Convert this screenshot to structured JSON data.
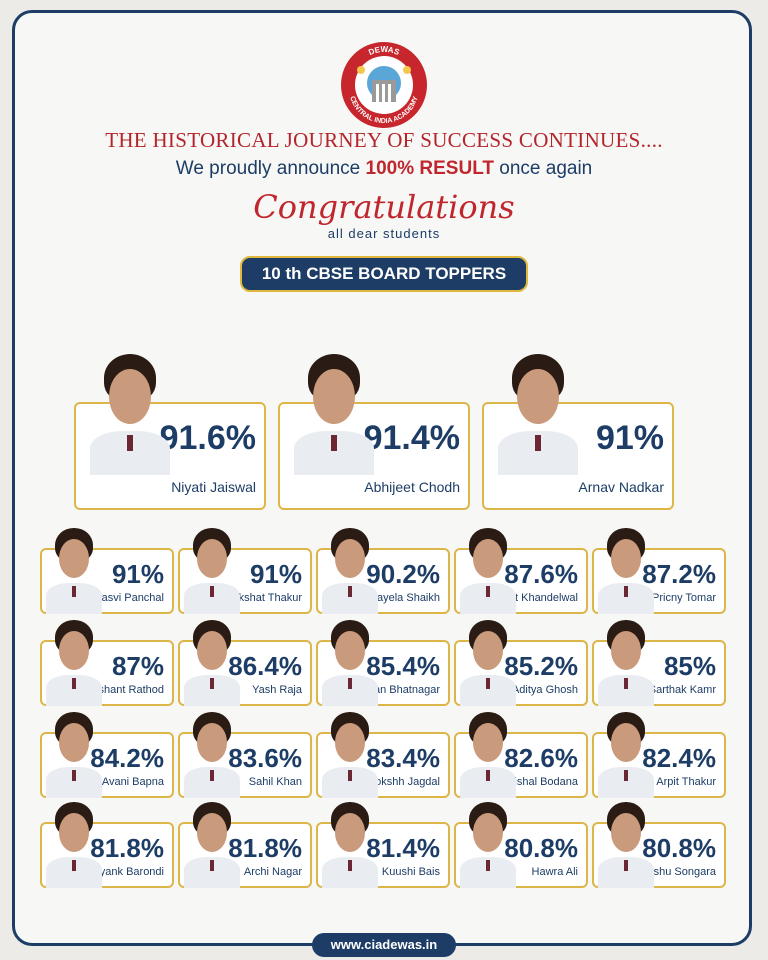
{
  "logo": {
    "top_text": "DEWAS",
    "ring_text": "CENTRAL INDIA ACADEMY"
  },
  "header": {
    "line1": "THE HISTORICAL JOURNEY OF SUCCESS CONTINUES....",
    "line2_pre": "We proudly announce ",
    "line2_bold": "100% RESULT",
    "line2_post": " once again",
    "congrats": "Congratulations",
    "sub": "all dear students",
    "banner": "10 th CBSE BOARD TOPPERS"
  },
  "top_three": [
    {
      "percent": "91.6%",
      "name": "Niyati Jaiswal"
    },
    {
      "percent": "91.4%",
      "name": "Abhijeet Chodh"
    },
    {
      "percent": "91%",
      "name": "Arnav Nadkar"
    }
  ],
  "rows": [
    [
      {
        "percent": "91%",
        "name": "Satasvi Panchal"
      },
      {
        "percent": "91%",
        "name": "Akshat  Thakur"
      },
      {
        "percent": "90.2%",
        "name": "Nayela Shaikh"
      },
      {
        "percent": "87.6%",
        "name": "Archit Khandelwal"
      },
      {
        "percent": "87.2%",
        "name": "Pricny Tomar"
      }
    ],
    [
      {
        "percent": "87%",
        "name": "Prashant Rathod"
      },
      {
        "percent": "86.4%",
        "name": "Yash Raja"
      },
      {
        "percent": "85.4%",
        "name": "Mohan Bhatnagar"
      },
      {
        "percent": "85.2%",
        "name": "Aditya Ghosh"
      },
      {
        "percent": "85%",
        "name": "Sarthak Kamr"
      }
    ],
    [
      {
        "percent": "84.2%",
        "name": "Avani Bapna"
      },
      {
        "percent": "83.6%",
        "name": "Sahil Khan"
      },
      {
        "percent": "83.4%",
        "name": "Mokshh Jagdal"
      },
      {
        "percent": "82.6%",
        "name": "Vishal Bodana"
      },
      {
        "percent": "82.4%",
        "name": "Arpit Thakur"
      }
    ],
    [
      {
        "percent": "81.8%",
        "name": "Mayank Barondi"
      },
      {
        "percent": "81.8%",
        "name": "Archi Nagar"
      },
      {
        "percent": "81.4%",
        "name": "Kuushi Bais"
      },
      {
        "percent": "80.8%",
        "name": "Hawra Ali"
      },
      {
        "percent": "80.8%",
        "name": "Priyanshu Songara"
      }
    ]
  ],
  "footer": {
    "website": "www.ciadewas.in"
  },
  "colors": {
    "navy": "#1d3d66",
    "red": "#c0262d",
    "gold": "#ddb64a"
  }
}
